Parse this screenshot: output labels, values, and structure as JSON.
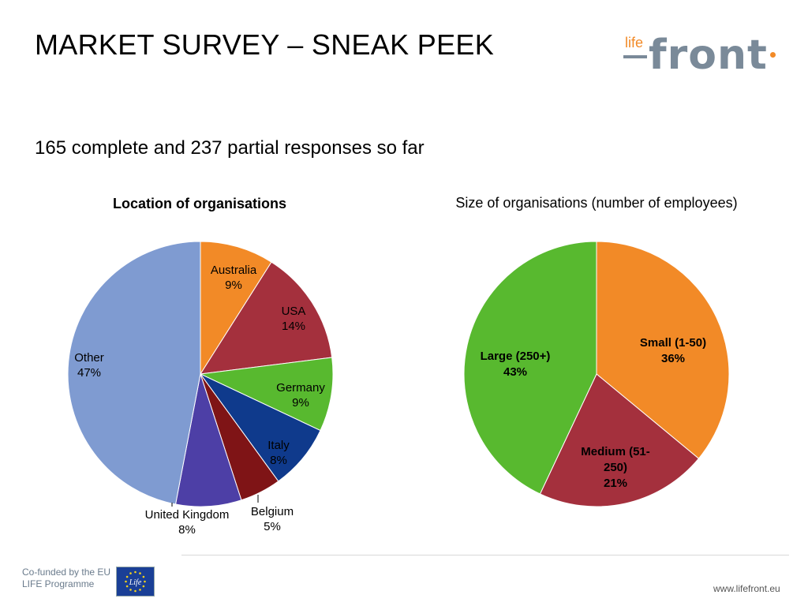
{
  "header": {
    "title": "MARKET SURVEY – SNEAK PEEK",
    "logo_small": "life",
    "logo_large": "front"
  },
  "subtitle": "165 complete and 237 partial responses so far",
  "chart_data": [
    {
      "type": "pie",
      "title": "Location of organisations",
      "slices": [
        {
          "label": "Australia",
          "pct_label": "9%",
          "value": 9,
          "color": "#f28a27"
        },
        {
          "label": "USA",
          "pct_label": "14%",
          "value": 14,
          "color": "#a4303d"
        },
        {
          "label": "Germany",
          "pct_label": "9%",
          "value": 9,
          "color": "#58b92f"
        },
        {
          "label": "Italy",
          "pct_label": "8%",
          "value": 8,
          "color": "#0f3a8c"
        },
        {
          "label": "Belgium",
          "pct_label": "5%",
          "value": 5,
          "color": "#7f1416"
        },
        {
          "label": "United Kingdom",
          "pct_label": "8%",
          "value": 8,
          "color": "#4d3fa6"
        },
        {
          "label": "Other",
          "pct_label": "47%",
          "value": 47,
          "color": "#7f9bd1"
        }
      ]
    },
    {
      "type": "pie",
      "title": "Size of organisations (number of employees)",
      "slices": [
        {
          "label": "Small (1-50)",
          "pct_label": "36%",
          "value": 36,
          "color": "#f28a27"
        },
        {
          "label": "Medium (51-250)",
          "label_lines": [
            "Medium (51-",
            "250)"
          ],
          "pct_label": "21%",
          "value": 21,
          "color": "#a4303d"
        },
        {
          "label": "Large (250+)",
          "pct_label": "43%",
          "value": 43,
          "color": "#58b92f"
        }
      ]
    }
  ],
  "footer": {
    "cofunded_line1": "Co-funded by the EU",
    "cofunded_line2": "LIFE Programme",
    "flag_text": "Life",
    "url": "www.lifefront.eu"
  }
}
